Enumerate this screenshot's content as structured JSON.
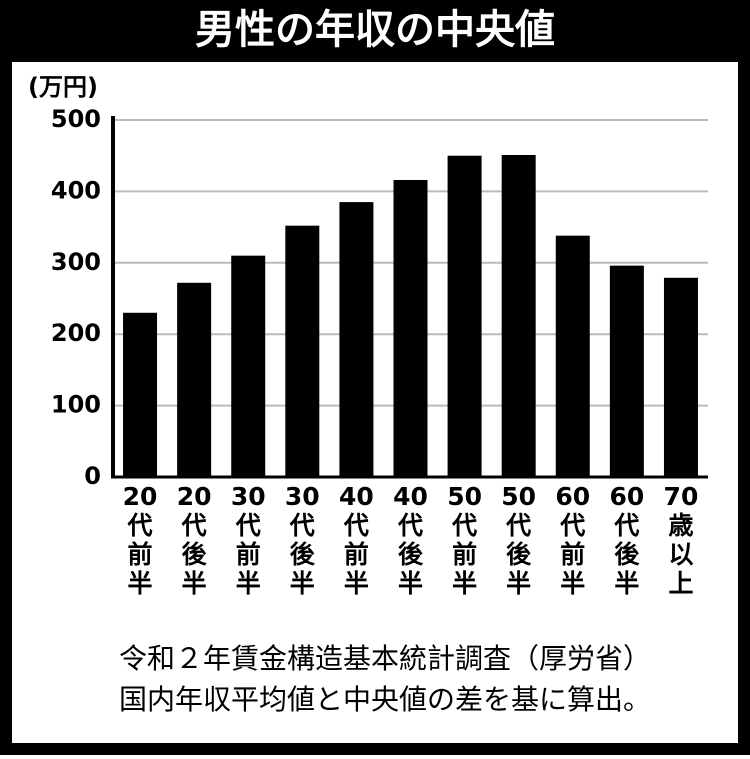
{
  "chart_data": {
    "type": "bar",
    "title": "男性の年収の中央値",
    "y_label": "(万円)",
    "categories": [
      "20代前半",
      "20代後半",
      "30代前半",
      "30代後半",
      "40代前半",
      "40代後半",
      "50代前半",
      "50代後半",
      "60代前半",
      "60代後半",
      "70歳以上"
    ],
    "values": [
      230,
      272,
      310,
      352,
      385,
      416,
      450,
      451,
      338,
      296,
      279
    ],
    "color": "#000000",
    "ylim": [
      0,
      500
    ],
    "yticks": [
      0,
      100,
      200,
      300,
      400,
      500
    ],
    "grid": true,
    "notes": [
      "令和２年賃金構造基本統計調査（厚労省）",
      "国内年収平均値と中央値の差を基に算出。"
    ]
  }
}
